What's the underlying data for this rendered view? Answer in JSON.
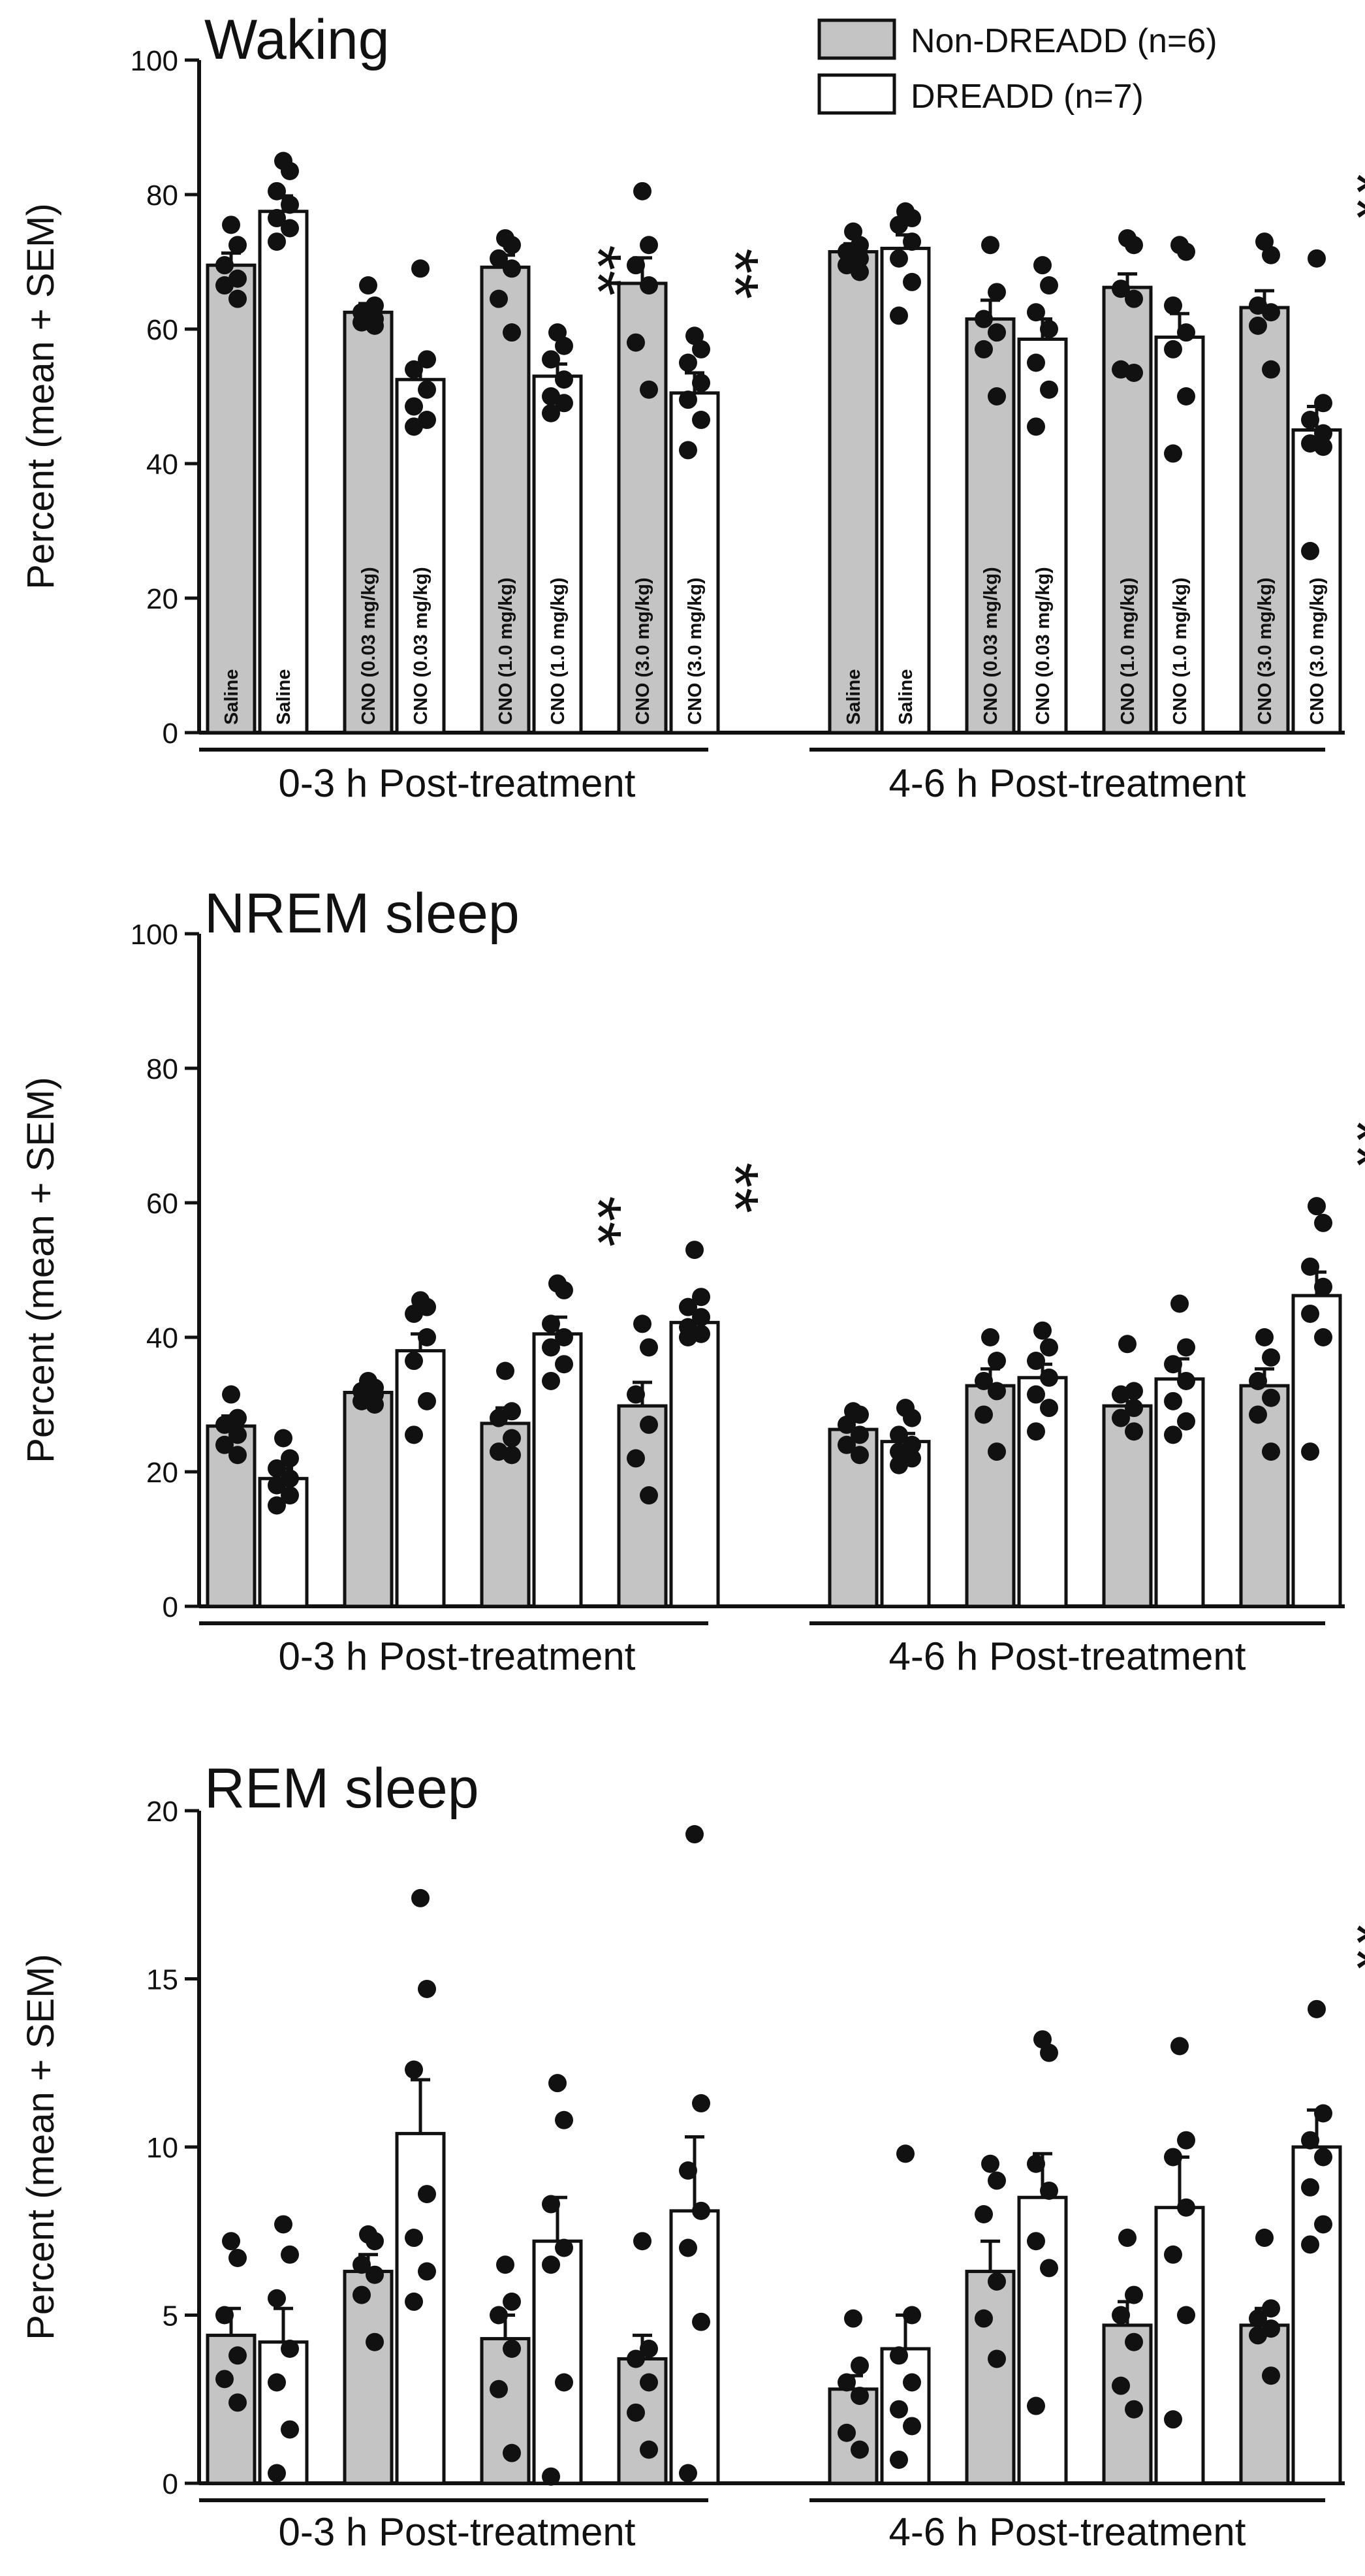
{
  "legend": {
    "items": [
      {
        "label": "Non-DREADD (n=6)",
        "fill": "#c4c4c4"
      },
      {
        "label": "DREADD (n=7)",
        "fill": "#ffffff"
      }
    ]
  },
  "colors": {
    "non_dreadd": "#c4c4c4",
    "dreadd": "#ffffff",
    "ink": "#111111"
  },
  "chart_data": [
    {
      "type": "bar",
      "title": "Waking",
      "ylabel": "Percent (mean + SEM)",
      "ylim": [
        0,
        100
      ],
      "yticks": [
        0,
        20,
        40,
        60,
        80,
        100
      ],
      "groups": [
        "0-3 h Post-treatment",
        "4-6 h Post-treatment"
      ],
      "bar_labels": [
        "Saline",
        "CNO (0.03 mg/kg)",
        "CNO (1.0 mg/kg)",
        "CNO (3.0 mg/kg)"
      ],
      "show_bar_labels": true,
      "series": [
        {
          "name": "Non-DREADD (n=6)",
          "values": [
            69.5,
            62.5,
            69.2,
            66.8,
            71.5,
            61.5,
            66.2,
            63.2
          ],
          "sem": [
            1.8,
            1.3,
            1.8,
            3.8,
            1.2,
            2.8,
            2.0,
            2.5
          ],
          "points": [
            [
              75.5,
              72.5,
              69.5,
              67.5,
              66.5,
              64.5
            ],
            [
              66.5,
              63.5,
              62.5,
              61.5,
              61.0,
              60.5
            ],
            [
              73.5,
              72.5,
              70.5,
              69.0,
              64.5,
              59.5
            ],
            [
              80.5,
              72.5,
              69.5,
              66.5,
              58.0,
              51.0
            ],
            [
              74.5,
              72.5,
              71.5,
              70.5,
              69.5,
              68.5
            ],
            [
              72.5,
              65.5,
              61.5,
              59.5,
              57.0,
              50.0
            ],
            [
              73.5,
              72.5,
              66.0,
              64.5,
              54.0,
              53.5
            ],
            [
              73.0,
              71.0,
              63.5,
              62.5,
              60.5,
              54.0
            ]
          ]
        },
        {
          "name": "DREADD (n=7)",
          "values": [
            77.5,
            52.5,
            53.0,
            50.5,
            72.0,
            58.5,
            58.8,
            45.0
          ],
          "sem": [
            2.3,
            2.5,
            1.8,
            3.0,
            2.0,
            3.0,
            3.5,
            3.5
          ],
          "points": [
            [
              85.0,
              83.5,
              80.5,
              78.5,
              76.5,
              75.0,
              73.0
            ],
            [
              69.0,
              55.5,
              54.0,
              51.0,
              48.5,
              46.5,
              45.5
            ],
            [
              59.5,
              57.5,
              55.5,
              52.5,
              50.0,
              49.0,
              47.5
            ],
            [
              59.0,
              57.0,
              55.0,
              52.0,
              49.5,
              46.5,
              42.0
            ],
            [
              77.5,
              76.5,
              75.5,
              73.0,
              70.5,
              67.0,
              62.0
            ],
            [
              69.5,
              66.5,
              62.5,
              60.0,
              55.0,
              51.0,
              45.5
            ],
            [
              72.5,
              71.5,
              63.5,
              59.5,
              57.0,
              50.0,
              41.5
            ],
            [
              70.5,
              49.0,
              46.5,
              44.5,
              43.0,
              42.5,
              27.0
            ]
          ]
        }
      ],
      "significance": [
        {
          "group": 0,
          "bar": 2,
          "label": "**"
        },
        {
          "group": 0,
          "bar": 3,
          "label": "**"
        },
        {
          "group": 1,
          "bar": 3,
          "label": "**"
        }
      ]
    },
    {
      "type": "bar",
      "title": "NREM sleep",
      "ylabel": "Percent (mean + SEM)",
      "ylim": [
        0,
        100
      ],
      "yticks": [
        0,
        20,
        40,
        60,
        80,
        100
      ],
      "groups": [
        "0-3 h Post-treatment",
        "4-6 h Post-treatment"
      ],
      "show_bar_labels": false,
      "series": [
        {
          "name": "Non-DREADD (n=6)",
          "values": [
            26.8,
            31.8,
            27.2,
            29.8,
            26.3,
            32.8,
            29.8,
            32.8
          ],
          "sem": [
            1.5,
            0.8,
            2.3,
            3.5,
            1.2,
            2.5,
            1.8,
            2.5
          ],
          "points": [
            [
              31.5,
              28.0,
              27.0,
              25.5,
              24.0,
              22.5
            ],
            [
              33.5,
              32.5,
              32.0,
              31.5,
              30.5,
              30.0
            ],
            [
              35.0,
              29.0,
              28.0,
              25.0,
              23.0,
              22.5
            ],
            [
              42.0,
              38.5,
              31.5,
              27.0,
              22.0,
              16.5
            ],
            [
              29.0,
              28.5,
              27.0,
              25.5,
              24.0,
              22.5
            ],
            [
              40.0,
              36.5,
              33.5,
              32.0,
              28.5,
              23.0
            ],
            [
              39.0,
              32.0,
              31.5,
              29.5,
              28.0,
              26.0
            ],
            [
              40.0,
              37.0,
              33.5,
              31.0,
              28.5,
              23.0
            ]
          ]
        },
        {
          "name": "DREADD (n=7)",
          "values": [
            19.0,
            38.0,
            40.5,
            42.2,
            24.5,
            34.0,
            33.8,
            46.2
          ],
          "sem": [
            1.5,
            2.5,
            2.5,
            1.8,
            1.2,
            2.0,
            3.0,
            3.5
          ],
          "points": [
            [
              25.0,
              22.0,
              20.5,
              19.0,
              18.0,
              16.5,
              15.0
            ],
            [
              45.5,
              44.5,
              43.5,
              40.0,
              36.5,
              30.5,
              25.5
            ],
            [
              48.0,
              47.0,
              42.0,
              40.0,
              38.5,
              36.0,
              33.5
            ],
            [
              53.0,
              46.0,
              44.5,
              43.0,
              41.5,
              40.5,
              40.0
            ],
            [
              29.5,
              28.0,
              25.5,
              24.0,
              23.0,
              22.0,
              21.0
            ],
            [
              41.0,
              38.5,
              36.5,
              34.0,
              31.5,
              29.5,
              26.0
            ],
            [
              45.0,
              38.5,
              36.0,
              33.5,
              30.5,
              27.5,
              25.5
            ],
            [
              59.5,
              57.0,
              50.5,
              47.5,
              43.5,
              40.0,
              23.0
            ]
          ]
        }
      ],
      "significance": [
        {
          "group": 0,
          "bar": 2,
          "label": "**"
        },
        {
          "group": 0,
          "bar": 3,
          "label": "**"
        },
        {
          "group": 1,
          "bar": 3,
          "label": "**"
        }
      ]
    },
    {
      "type": "bar",
      "title": "REM sleep",
      "ylabel": "Percent (mean + SEM)",
      "ylim": [
        0,
        20
      ],
      "yticks": [
        0,
        5,
        10,
        15,
        20
      ],
      "groups": [
        "0-3 h Post-treatment",
        "4-6 h Post-treatment"
      ],
      "show_bar_labels": false,
      "series": [
        {
          "name": "Non-DREADD (n=6)",
          "values": [
            4.4,
            6.3,
            4.3,
            3.7,
            2.8,
            6.3,
            4.7,
            4.7
          ],
          "sem": [
            0.8,
            0.5,
            0.7,
            0.7,
            0.4,
            0.9,
            0.7,
            0.5
          ],
          "points": [
            [
              7.2,
              6.7,
              5.0,
              3.8,
              3.1,
              2.4
            ],
            [
              7.4,
              7.2,
              6.5,
              6.2,
              5.6,
              4.2
            ],
            [
              6.5,
              5.4,
              5.0,
              4.0,
              2.8,
              0.9
            ],
            [
              7.2,
              4.0,
              3.7,
              3.0,
              2.1,
              1.0
            ],
            [
              4.9,
              3.5,
              3.0,
              2.6,
              1.5,
              1.0
            ],
            [
              9.5,
              9.0,
              8.0,
              6.0,
              4.9,
              3.7
            ],
            [
              7.3,
              5.6,
              5.0,
              4.2,
              2.9,
              2.2
            ],
            [
              7.3,
              5.2,
              4.9,
              4.6,
              4.4,
              3.2
            ]
          ]
        },
        {
          "name": "DREADD (n=7)",
          "values": [
            4.2,
            10.4,
            7.2,
            8.1,
            4.0,
            8.5,
            8.2,
            10.0
          ],
          "sem": [
            1.0,
            1.6,
            1.3,
            2.2,
            1.0,
            1.3,
            1.5,
            1.1
          ],
          "points": [
            [
              7.7,
              6.8,
              5.5,
              4.0,
              3.0,
              1.6,
              0.3
            ],
            [
              17.4,
              14.7,
              12.3,
              8.6,
              7.3,
              6.3,
              5.4
            ],
            [
              11.9,
              10.8,
              8.3,
              7.0,
              6.5,
              3.0,
              0.2
            ],
            [
              19.3,
              11.3,
              9.3,
              8.1,
              7.0,
              4.8,
              0.3
            ],
            [
              9.8,
              5.0,
              3.8,
              3.0,
              2.2,
              1.7,
              0.7
            ],
            [
              13.2,
              12.8,
              9.5,
              8.7,
              7.2,
              6.4,
              2.3
            ],
            [
              13.0,
              10.2,
              9.7,
              8.2,
              6.8,
              5.0,
              1.9
            ],
            [
              14.1,
              11.0,
              10.2,
              9.7,
              8.8,
              7.7,
              7.1
            ]
          ]
        }
      ],
      "significance": [
        {
          "group": 1,
          "bar": 3,
          "label": "**"
        }
      ]
    }
  ]
}
